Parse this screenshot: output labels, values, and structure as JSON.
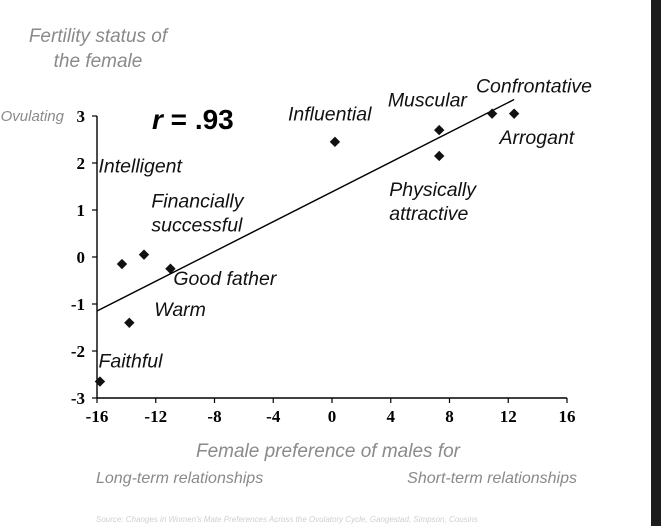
{
  "chart_data": {
    "type": "scatter",
    "ylabel_lines": [
      "Fertility status of",
      "the female"
    ],
    "y_extreme_label": "Ovulating",
    "xlabel": "Female preference of males for",
    "x_sub_left": "Long-term relationships",
    "x_sub_right": "Short-term relationships",
    "annotation": {
      "var": "r",
      "text": " = .93"
    },
    "source": "Source: Changes in Women's Mate Preferences Across the Ovulatory Cycle, Gangestad, Simpson, Cousins",
    "xlim": [
      -16,
      16
    ],
    "ylim": [
      -3,
      3
    ],
    "x_ticks": [
      -16,
      -12,
      -8,
      -4,
      0,
      4,
      8,
      12,
      16
    ],
    "x_tick_labels": [
      "-16",
      "-12",
      "-8",
      "-4",
      "0",
      "4",
      "8",
      "12",
      "16"
    ],
    "y_ticks": [
      -3,
      -2,
      -1,
      0,
      1,
      2,
      3
    ],
    "y_tick_labels": [
      "-3",
      "-2",
      "-1",
      "0",
      "1",
      "2",
      "3"
    ],
    "trendline": {
      "x": [
        -16,
        12.4
      ],
      "y": [
        -1.15,
        3.35
      ]
    },
    "points": [
      {
        "x": -15.8,
        "y": -2.65
      },
      {
        "x": -13.8,
        "y": -1.4
      },
      {
        "x": -14.3,
        "y": -0.15
      },
      {
        "x": -12.8,
        "y": 0.05
      },
      {
        "x": -11.0,
        "y": -0.25
      },
      {
        "x": 0.2,
        "y": 2.45
      },
      {
        "x": 7.3,
        "y": 2.7
      },
      {
        "x": 7.3,
        "y": 2.15
      },
      {
        "x": 10.9,
        "y": 3.05
      },
      {
        "x": 12.4,
        "y": 3.05
      }
    ],
    "labels": [
      {
        "lines": [
          "Faithful"
        ],
        "x": -15.9,
        "y": -2.35
      },
      {
        "lines": [
          "Warm"
        ],
        "x": -12.1,
        "y": -1.25
      },
      {
        "lines": [
          "Good father"
        ],
        "x": -10.8,
        "y": -0.6
      },
      {
        "lines": [
          "Financially",
          "successful"
        ],
        "x": -12.3,
        "y": 1.05
      },
      {
        "lines": [
          "Intelligent"
        ],
        "x": -15.9,
        "y": 1.8
      },
      {
        "lines": [
          "Influential"
        ],
        "x": -3.0,
        "y": 2.9
      },
      {
        "lines": [
          "Muscular"
        ],
        "x": 3.8,
        "y": 3.2
      },
      {
        "lines": [
          "Confrontative"
        ],
        "x": 9.8,
        "y": 3.5
      },
      {
        "lines": [
          "Arrogant"
        ],
        "x": 11.4,
        "y": 2.4
      },
      {
        "lines": [
          "Physically",
          "attractive"
        ],
        "x": 3.9,
        "y": 1.3
      }
    ],
    "grid": false,
    "legend": "none",
    "colors": {
      "marker": "#111111",
      "line": "#000000",
      "axis_label": "#8a8a8a"
    }
  }
}
